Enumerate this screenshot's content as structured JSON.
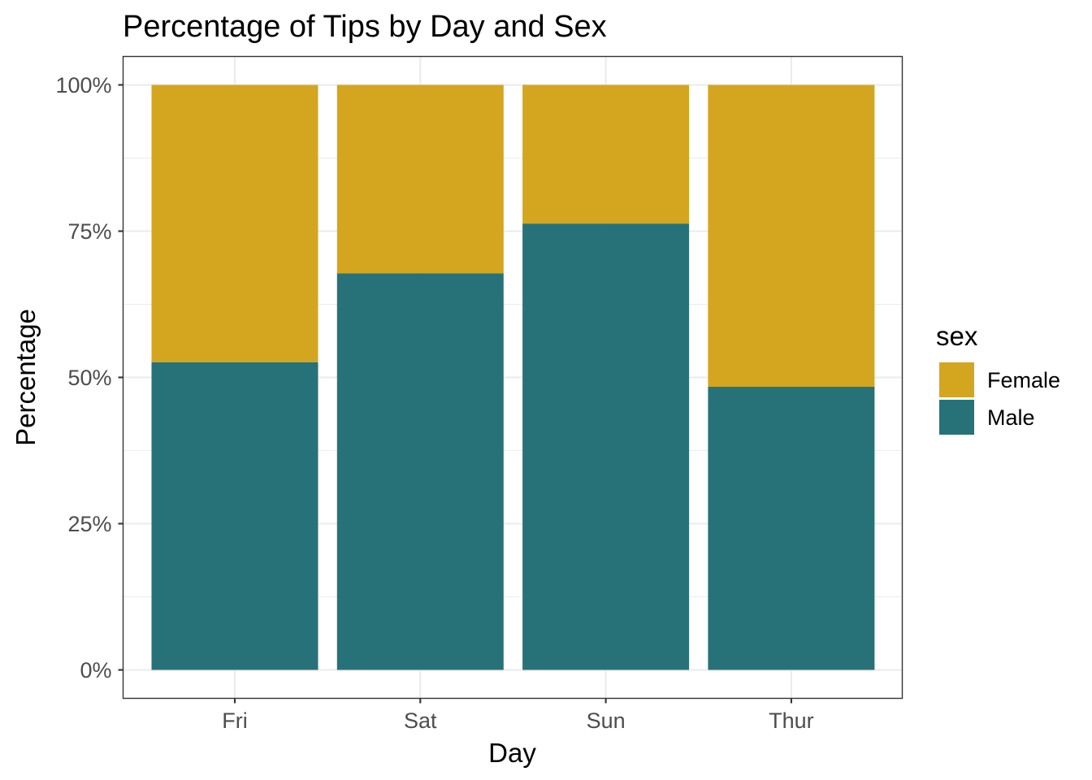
{
  "chart_data": {
    "type": "bar",
    "stacked": true,
    "normalized": true,
    "title": "Percentage of Tips by Day and Sex",
    "xlabel": "Day",
    "ylabel": "Percentage",
    "categories": [
      "Fri",
      "Sat",
      "Sun",
      "Thur"
    ],
    "series": [
      {
        "name": "Female",
        "color": "#D4A51E",
        "values": [
          0.474,
          0.322,
          0.237,
          0.516
        ]
      },
      {
        "name": "Male",
        "color": "#277278",
        "values": [
          0.526,
          0.678,
          0.763,
          0.484
        ]
      }
    ],
    "ylim": [
      0,
      1
    ],
    "y_ticks": [
      0,
      0.25,
      0.5,
      0.75,
      1
    ],
    "y_tick_labels": [
      "0%",
      "25%",
      "50%",
      "75%",
      "100%"
    ],
    "grid": true,
    "legend": {
      "title": "sex",
      "position": "right",
      "entries": [
        "Female",
        "Male"
      ]
    }
  }
}
